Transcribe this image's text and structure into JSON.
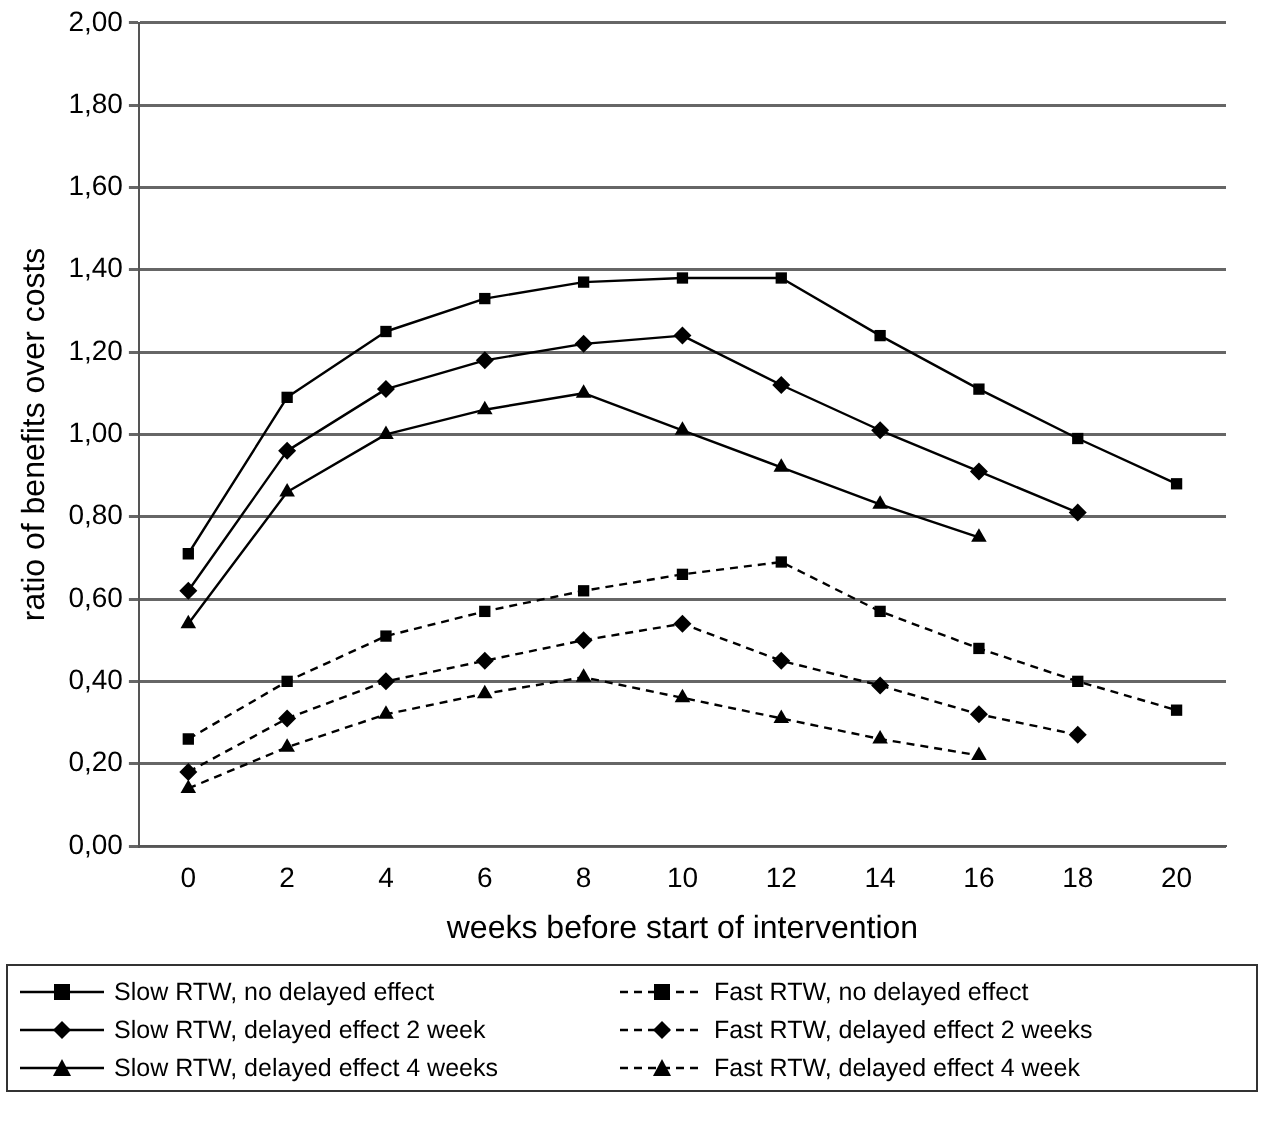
{
  "chart_data": {
    "type": "line",
    "xlabel": "weeks before start of intervention",
    "ylabel": "ratio of benefits over costs",
    "categories": [
      "0",
      "2",
      "4",
      "6",
      "8",
      "10",
      "12",
      "14",
      "16",
      "18",
      "20"
    ],
    "ylim": [
      0,
      2
    ],
    "yticks": [
      {
        "value": 0,
        "label": "0,00"
      },
      {
        "value": 0.2,
        "label": "0,20"
      },
      {
        "value": 0.4,
        "label": "0,40"
      },
      {
        "value": 0.6,
        "label": "0,60"
      },
      {
        "value": 0.8,
        "label": "0,80"
      },
      {
        "value": 1,
        "label": "1,00"
      },
      {
        "value": 1.2,
        "label": "1,20"
      },
      {
        "value": 1.4,
        "label": "1,40"
      },
      {
        "value": 1.6,
        "label": "1,60"
      },
      {
        "value": 1.8,
        "label": "1,80"
      },
      {
        "value": 2,
        "label": "2,00"
      }
    ],
    "grid": "y",
    "legend": "bottom",
    "series": [
      {
        "name": "Slow RTW, no delayed effect",
        "color": "#000000",
        "marker": "square",
        "line_style": "solid",
        "values": [
          0.71,
          1.09,
          1.25,
          1.33,
          1.37,
          1.38,
          1.38,
          1.24,
          1.11,
          0.99,
          0.88
        ]
      },
      {
        "name": "Fast RTW, no delayed effect",
        "color": "#000000",
        "marker": "square",
        "line_style": "dashed",
        "values": [
          0.26,
          0.4,
          0.51,
          0.57,
          0.62,
          0.66,
          0.69,
          0.57,
          0.48,
          0.4,
          0.33
        ]
      },
      {
        "name": "Slow RTW, delayed effect 2 week",
        "color": "#000000",
        "marker": "diamond",
        "line_style": "solid",
        "values": [
          0.62,
          0.96,
          1.11,
          1.18,
          1.22,
          1.24,
          1.12,
          1.01,
          0.91,
          0.81,
          null
        ]
      },
      {
        "name": "Fast RTW, delayed effect 2 weeks",
        "color": "#000000",
        "marker": "diamond",
        "line_style": "dashed",
        "values": [
          0.18,
          0.31,
          0.4,
          0.45,
          0.5,
          0.54,
          0.45,
          0.39,
          0.32,
          0.27,
          null
        ]
      },
      {
        "name": "Slow RTW, delayed effect 4 weeks",
        "color": "#000000",
        "marker": "triangle",
        "line_style": "solid",
        "values": [
          0.54,
          0.86,
          1.0,
          1.06,
          1.1,
          1.01,
          0.92,
          0.83,
          0.75,
          null,
          null
        ]
      },
      {
        "name": "Fast RTW, delayed effect 4 week",
        "color": "#000000",
        "marker": "triangle",
        "line_style": "dashed",
        "values": [
          0.14,
          0.24,
          0.32,
          0.37,
          0.41,
          0.36,
          0.31,
          0.26,
          0.22,
          null,
          null
        ]
      }
    ]
  }
}
